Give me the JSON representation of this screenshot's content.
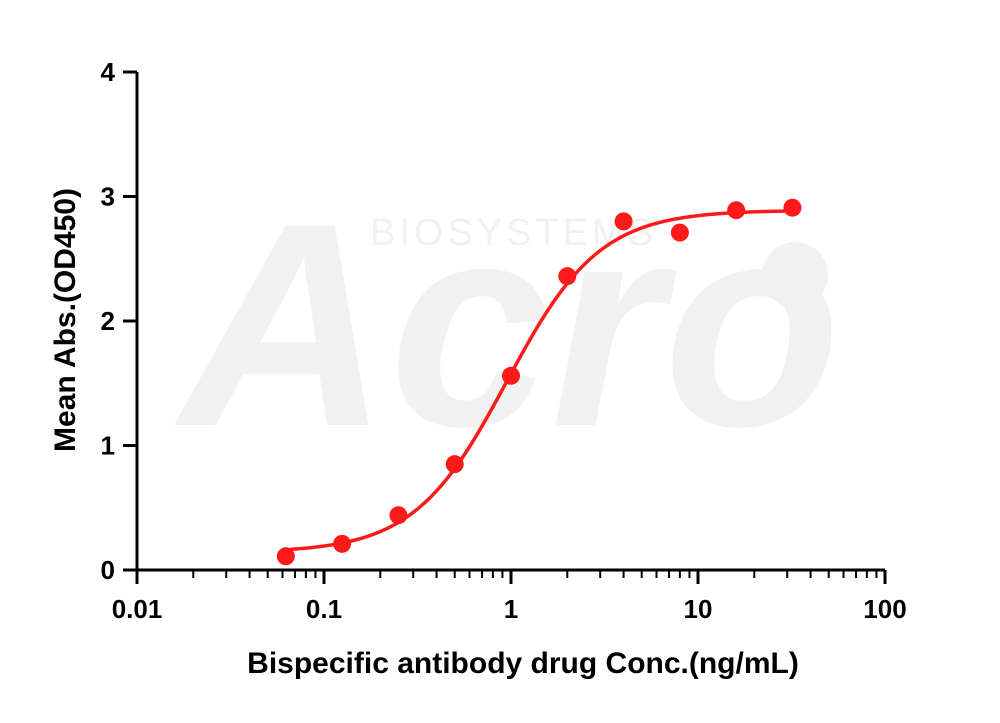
{
  "chart_data": {
    "type": "scatter",
    "title": "",
    "xlabel": "Bispecific antibody drug Conc.(ng/mL)",
    "ylabel": "Mean Abs.(OD450)",
    "x_scale": "log",
    "xlim": [
      0.01,
      100
    ],
    "ylim": [
      0,
      4
    ],
    "x_ticks": [
      "0.01",
      "0.1",
      "1",
      "10",
      "100"
    ],
    "y_ticks": [
      "0",
      "1",
      "2",
      "3",
      "4"
    ],
    "grid": false,
    "legend": "none",
    "series": [
      {
        "color": "#ff1a1a",
        "x": [
          0.0625,
          0.125,
          0.25,
          0.5,
          1,
          2,
          4,
          8,
          16,
          32
        ],
        "y": [
          0.11,
          0.21,
          0.44,
          0.85,
          1.56,
          2.36,
          2.8,
          2.71,
          2.89,
          2.91
        ],
        "fit": {
          "bottom": 0.14,
          "top": 2.89,
          "ec50": 0.95,
          "hill": 1.75
        }
      }
    ]
  },
  "watermark": {
    "text": "Acro",
    "subtext": "BIOSYSTEMS"
  }
}
